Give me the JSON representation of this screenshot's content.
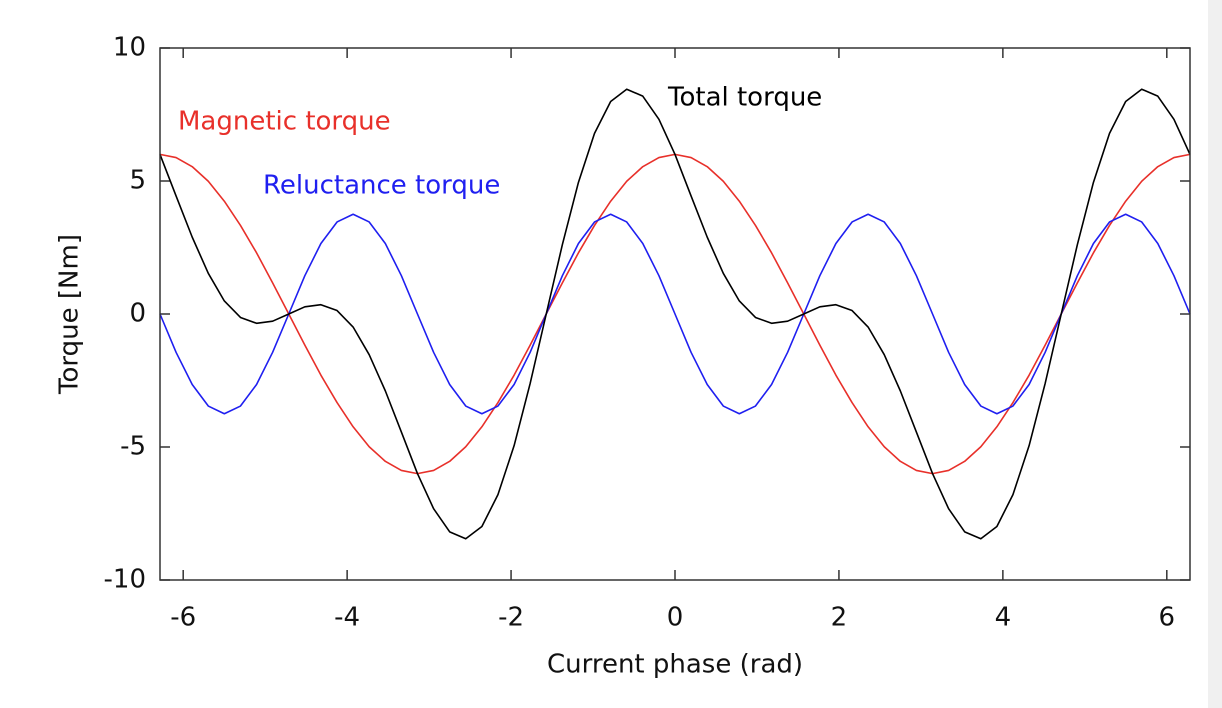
{
  "chart_data": {
    "type": "line",
    "x_label": "Current phase (rad)",
    "y_label": "Torque [Nm]",
    "x": [
      -6.283,
      -6.087,
      -5.89,
      -5.694,
      -5.498,
      -5.301,
      -5.105,
      -4.909,
      -4.712,
      -4.516,
      -4.32,
      -4.123,
      -3.927,
      -3.731,
      -3.534,
      -3.338,
      -3.142,
      -2.945,
      -2.749,
      -2.553,
      -2.356,
      -2.16,
      -1.963,
      -1.767,
      -1.571,
      -1.374,
      -1.178,
      -0.982,
      -0.785,
      -0.589,
      -0.393,
      -0.196,
      0,
      0.196,
      0.393,
      0.589,
      0.785,
      0.982,
      1.178,
      1.374,
      1.571,
      1.767,
      1.963,
      2.16,
      2.356,
      2.553,
      2.749,
      2.945,
      3.142,
      3.338,
      3.534,
      3.731,
      3.927,
      4.123,
      4.32,
      4.516,
      4.712,
      4.909,
      5.105,
      5.301,
      5.498,
      5.694,
      5.89,
      6.087,
      6.283
    ],
    "series": [
      {
        "name": "Magnetic torque",
        "color": "#e8302a",
        "values": [
          6,
          5.88,
          5.54,
          4.99,
          4.24,
          3.33,
          2.3,
          1.17,
          0,
          -1.17,
          -2.3,
          -3.33,
          -4.24,
          -4.99,
          -5.54,
          -5.88,
          -6,
          -5.88,
          -5.54,
          -4.99,
          -4.24,
          -3.33,
          -2.3,
          -1.17,
          0,
          1.17,
          2.3,
          3.33,
          4.24,
          4.99,
          5.54,
          5.88,
          6,
          5.88,
          5.54,
          4.99,
          4.24,
          3.33,
          2.3,
          1.17,
          0,
          -1.17,
          -2.3,
          -3.33,
          -4.24,
          -4.99,
          -5.54,
          -5.88,
          -6,
          -5.88,
          -5.54,
          -4.99,
          -4.24,
          -3.33,
          -2.3,
          -1.17,
          0,
          1.17,
          2.3,
          3.33,
          4.24,
          4.99,
          5.54,
          5.88,
          6
        ]
      },
      {
        "name": "Reluctance torque",
        "color": "#1f1ff0",
        "values": [
          0,
          -1.44,
          -2.65,
          -3.46,
          -3.75,
          -3.46,
          -2.65,
          -1.44,
          0,
          1.44,
          2.65,
          3.46,
          3.75,
          3.46,
          2.65,
          1.44,
          0,
          -1.44,
          -2.65,
          -3.46,
          -3.75,
          -3.46,
          -2.65,
          -1.44,
          0,
          1.44,
          2.65,
          3.46,
          3.75,
          3.46,
          2.65,
          1.44,
          0,
          -1.44,
          -2.65,
          -3.46,
          -3.75,
          -3.46,
          -2.65,
          -1.44,
          0,
          1.44,
          2.65,
          3.46,
          3.75,
          3.46,
          2.65,
          1.44,
          0,
          -1.44,
          -2.65,
          -3.46,
          -3.75,
          -3.46,
          -2.65,
          -1.44,
          0,
          1.44,
          2.65,
          3.46,
          3.75,
          3.46,
          2.65,
          1.44,
          0
        ]
      },
      {
        "name": "Total torque",
        "color": "#000000",
        "values": [
          6,
          4.44,
          2.89,
          1.53,
          0.49,
          -0.13,
          -0.35,
          -0.27,
          0,
          0.27,
          0.35,
          0.13,
          -0.49,
          -1.53,
          -2.89,
          -4.44,
          -6,
          -7.32,
          -8.19,
          -8.45,
          -7.99,
          -6.79,
          -4.95,
          -2.61,
          0,
          2.61,
          4.95,
          6.79,
          7.99,
          8.45,
          8.19,
          7.32,
          6,
          4.44,
          2.89,
          1.53,
          0.49,
          -0.13,
          -0.35,
          -0.27,
          0,
          0.27,
          0.35,
          0.13,
          -0.49,
          -1.53,
          -2.89,
          -4.44,
          -6,
          -7.32,
          -8.19,
          -8.45,
          -7.99,
          -6.79,
          -4.95,
          -2.61,
          0,
          2.61,
          4.95,
          6.79,
          7.99,
          8.45,
          8.19,
          7.32,
          6
        ]
      }
    ],
    "xlim": [
      -6.283,
      6.283
    ],
    "ylim": [
      -10,
      10
    ],
    "xticks": [
      -6,
      -4,
      -2,
      0,
      2,
      4,
      6
    ],
    "yticks": [
      -10,
      -5,
      0,
      5,
      10
    ],
    "grid": false
  }
}
